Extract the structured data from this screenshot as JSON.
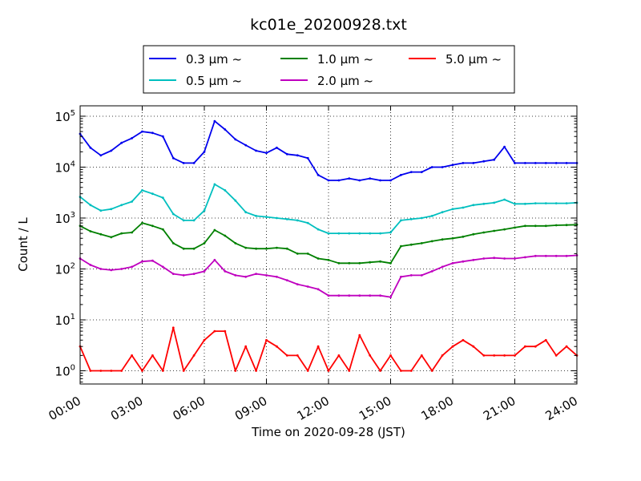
{
  "chart_data": {
    "type": "line",
    "title": "kc01e_20200928.txt",
    "xlabel": "Time on 2020-09-28 (JST)",
    "ylabel": "Count / L",
    "y_scale": "log",
    "ylim": [
      0.55,
      160000
    ],
    "xlim": [
      "00:00",
      "24:00"
    ],
    "x_ticks": [
      "00:00",
      "03:00",
      "06:00",
      "09:00",
      "12:00",
      "15:00",
      "18:00",
      "21:00",
      "24:00"
    ],
    "y_ticks": [
      1,
      10,
      100,
      1000,
      10000,
      100000
    ],
    "y_tick_labels": [
      {
        "base": "10",
        "exp": "0"
      },
      {
        "base": "10",
        "exp": "1"
      },
      {
        "base": "10",
        "exp": "2"
      },
      {
        "base": "10",
        "exp": "3"
      },
      {
        "base": "10",
        "exp": "4"
      },
      {
        "base": "10",
        "exp": "5"
      }
    ],
    "grid": true,
    "legend_position": "top-center",
    "x": [
      "00:00",
      "00:30",
      "01:00",
      "01:30",
      "02:00",
      "02:30",
      "03:00",
      "03:30",
      "04:00",
      "04:30",
      "05:00",
      "05:30",
      "06:00",
      "06:30",
      "07:00",
      "07:30",
      "08:00",
      "08:30",
      "09:00",
      "09:30",
      "10:00",
      "10:30",
      "11:00",
      "11:30",
      "12:00",
      "12:30",
      "13:00",
      "13:30",
      "14:00",
      "14:30",
      "15:00",
      "15:30",
      "16:00",
      "16:30",
      "17:00",
      "17:30",
      "18:00",
      "18:30",
      "19:00",
      "19:30",
      "20:00",
      "20:30",
      "21:00",
      "21:30",
      "22:00",
      "22:30",
      "23:00",
      "23:30",
      "24:00"
    ],
    "series": [
      {
        "name": "0.3 μm ~",
        "color": "#0000ee",
        "values": [
          45000,
          24000,
          17000,
          21000,
          30000,
          37000,
          50000,
          47000,
          40000,
          15000,
          12000,
          12000,
          20000,
          80000,
          55000,
          35000,
          27000,
          21000,
          19000,
          24000,
          18000,
          17000,
          15000,
          7000,
          5500,
          5500,
          6000,
          5500,
          6000,
          5500,
          5500,
          7000,
          8000,
          8000,
          10000,
          10000,
          11000,
          12000,
          12000,
          13000,
          14000,
          25000,
          12000,
          12000,
          12000,
          12000,
          12000,
          12000,
          12000
        ]
      },
      {
        "name": "0.5 μm ~",
        "color": "#00bfbf",
        "values": [
          2600,
          1800,
          1400,
          1500,
          1800,
          2100,
          3500,
          3000,
          2500,
          1200,
          900,
          900,
          1400,
          4600,
          3500,
          2200,
          1300,
          1100,
          1050,
          1000,
          950,
          900,
          800,
          600,
          500,
          500,
          500,
          500,
          500,
          500,
          520,
          900,
          950,
          1000,
          1100,
          1300,
          1500,
          1600,
          1800,
          1900,
          2000,
          2300,
          1900,
          1900,
          1950,
          1950,
          1950,
          1950,
          2000
        ]
      },
      {
        "name": "1.0 μm ~",
        "color": "#008000",
        "values": [
          700,
          550,
          480,
          420,
          500,
          520,
          800,
          700,
          600,
          320,
          250,
          250,
          320,
          580,
          450,
          320,
          260,
          250,
          250,
          260,
          250,
          200,
          200,
          160,
          150,
          130,
          130,
          130,
          135,
          140,
          130,
          280,
          300,
          320,
          350,
          380,
          400,
          430,
          480,
          520,
          560,
          600,
          650,
          700,
          700,
          700,
          720,
          730,
          740
        ]
      },
      {
        "name": "2.0 μm ~",
        "color": "#bf00bf",
        "values": [
          160,
          120,
          100,
          95,
          100,
          110,
          140,
          145,
          110,
          80,
          75,
          80,
          90,
          150,
          90,
          75,
          70,
          80,
          75,
          70,
          60,
          50,
          45,
          40,
          30,
          30,
          30,
          30,
          30,
          30,
          28,
          70,
          75,
          75,
          90,
          110,
          130,
          140,
          150,
          160,
          165,
          160,
          160,
          170,
          180,
          180,
          180,
          180,
          185
        ]
      },
      {
        "name": "5.0 μm ~",
        "color": "#ff0000",
        "values": [
          3,
          1,
          1,
          1,
          1,
          2,
          1,
          2,
          1,
          7,
          1,
          2,
          4,
          6,
          6,
          1,
          3,
          1,
          4,
          3,
          2,
          2,
          1,
          3,
          1,
          2,
          1,
          5,
          2,
          1,
          2,
          1,
          1,
          2,
          1,
          2,
          3,
          4,
          3,
          2,
          2,
          2,
          2,
          3,
          3,
          4,
          2,
          3,
          2
        ]
      }
    ]
  }
}
